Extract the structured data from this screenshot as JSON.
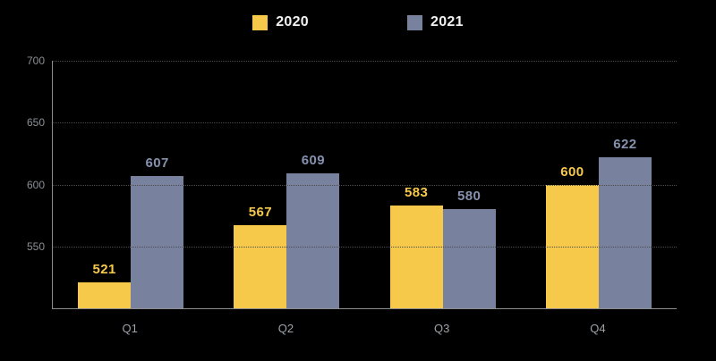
{
  "background": "#000000",
  "legend": {
    "position": "top-center",
    "items": [
      {
        "label": "2020",
        "color": "#f6c94a"
      },
      {
        "label": "2021",
        "color": "#78829e"
      }
    ]
  },
  "chart_data": {
    "type": "bar",
    "title": "",
    "xlabel": "",
    "ylabel": "",
    "categories": [
      "Q1",
      "Q2",
      "Q3",
      "Q4"
    ],
    "series": [
      {
        "name": "2020",
        "color": "#f6c94a",
        "label_color": "#f6c94a",
        "values": [
          521,
          567,
          583,
          600
        ]
      },
      {
        "name": "2021",
        "color": "#78829e",
        "label_color": "#8591ae",
        "values": [
          607,
          609,
          580,
          622
        ]
      }
    ],
    "ylim": [
      500,
      700
    ],
    "yticks": [
      700,
      650,
      600,
      550
    ],
    "grid": "horizontal-dotted",
    "legend_position": "top-center",
    "bar_value_labels": true
  }
}
